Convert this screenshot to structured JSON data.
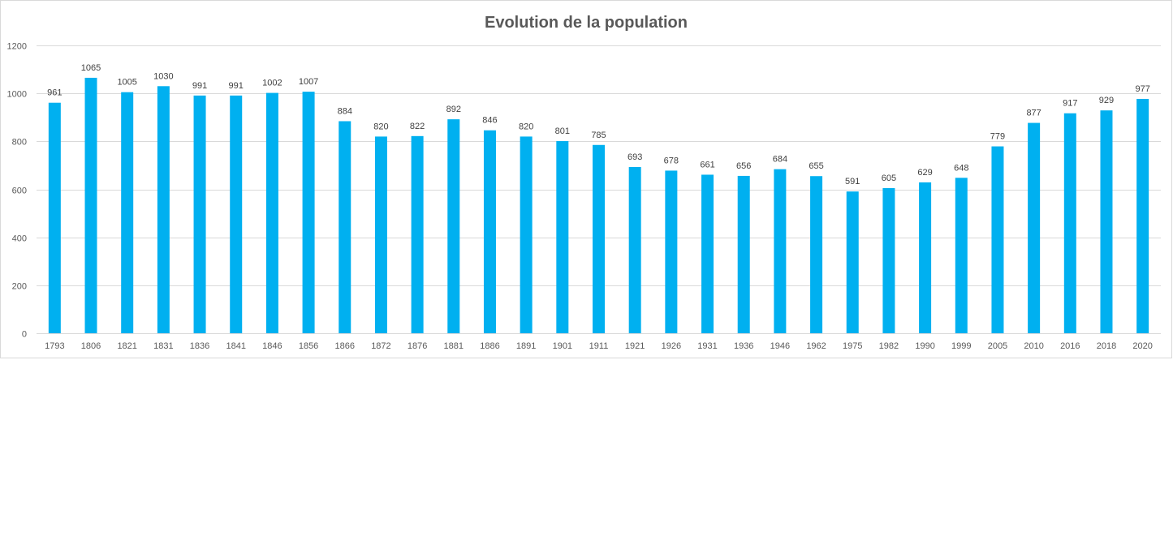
{
  "chart_data": {
    "type": "bar",
    "title": "Evolution de la population",
    "xlabel": "",
    "ylabel": "",
    "ylim": [
      0,
      1200
    ],
    "yticks": [
      0,
      200,
      400,
      600,
      800,
      1000,
      1200
    ],
    "grid": true,
    "legend": "none",
    "bar_color": "#00B0F0",
    "categories": [
      "1793",
      "1806",
      "1821",
      "1831",
      "1836",
      "1841",
      "1846",
      "1856",
      "1866",
      "1872",
      "1876",
      "1881",
      "1886",
      "1891",
      "1901",
      "1911",
      "1921",
      "1926",
      "1931",
      "1936",
      "1946",
      "1962",
      "1975",
      "1982",
      "1990",
      "1999",
      "2005",
      "2010",
      "2016",
      "2018",
      "2020"
    ],
    "values": [
      961,
      1065,
      1005,
      1030,
      991,
      991,
      1002,
      1007,
      884,
      820,
      822,
      892,
      846,
      820,
      801,
      785,
      693,
      678,
      661,
      656,
      684,
      655,
      591,
      605,
      629,
      648,
      779,
      877,
      917,
      929,
      977
    ]
  }
}
